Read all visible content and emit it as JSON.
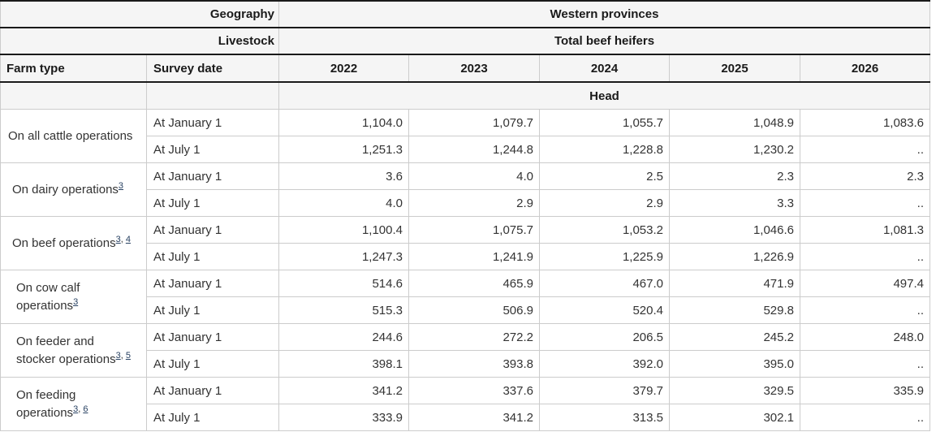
{
  "table": {
    "header": {
      "geography_label": "Geography",
      "geography_value": "Western provinces",
      "livestock_label": "Livestock",
      "livestock_value": "Total beef heifers",
      "farm_type": "Farm type",
      "survey_date": "Survey date",
      "years": [
        "2022",
        "2023",
        "2024",
        "2025",
        "2026"
      ],
      "unit": "Head"
    },
    "rows": [
      {
        "farm_type": "On all cattle operations",
        "footnotes": [],
        "indent": 0,
        "sub_rows": [
          {
            "survey_date": "At January 1",
            "values": [
              "1,104.0",
              "1,079.7",
              "1,055.7",
              "1,048.9",
              "1,083.6"
            ]
          },
          {
            "survey_date": "At July 1",
            "values": [
              "1,251.3",
              "1,244.8",
              "1,228.8",
              "1,230.2",
              ".."
            ]
          }
        ]
      },
      {
        "farm_type": "On dairy operations",
        "footnotes": [
          "3"
        ],
        "indent": 1,
        "sub_rows": [
          {
            "survey_date": "At January 1",
            "values": [
              "3.6",
              "4.0",
              "2.5",
              "2.3",
              "2.3"
            ]
          },
          {
            "survey_date": "At July 1",
            "values": [
              "4.0",
              "2.9",
              "2.9",
              "3.3",
              ".."
            ]
          }
        ]
      },
      {
        "farm_type": "On beef operations",
        "footnotes": [
          "3",
          "4"
        ],
        "indent": 1,
        "sub_rows": [
          {
            "survey_date": "At January 1",
            "values": [
              "1,100.4",
              "1,075.7",
              "1,053.2",
              "1,046.6",
              "1,081.3"
            ]
          },
          {
            "survey_date": "At July 1",
            "values": [
              "1,247.3",
              "1,241.9",
              "1,225.9",
              "1,226.9",
              ".."
            ]
          }
        ]
      },
      {
        "farm_type": "On cow calf operations",
        "footnotes": [
          "3"
        ],
        "indent": 2,
        "sub_rows": [
          {
            "survey_date": "At January 1",
            "values": [
              "514.6",
              "465.9",
              "467.0",
              "471.9",
              "497.4"
            ]
          },
          {
            "survey_date": "At July 1",
            "values": [
              "515.3",
              "506.9",
              "520.4",
              "529.8",
              ".."
            ]
          }
        ]
      },
      {
        "farm_type": "On feeder and stocker operations",
        "footnotes": [
          "3",
          "5"
        ],
        "indent": 2,
        "sub_rows": [
          {
            "survey_date": "At January 1",
            "values": [
              "244.6",
              "272.2",
              "206.5",
              "245.2",
              "248.0"
            ]
          },
          {
            "survey_date": "At July 1",
            "values": [
              "398.1",
              "393.8",
              "392.0",
              "395.0",
              ".."
            ]
          }
        ]
      },
      {
        "farm_type": "On feeding operations",
        "footnotes": [
          "3",
          "6"
        ],
        "indent": 2,
        "sub_rows": [
          {
            "survey_date": "At January 1",
            "values": [
              "341.2",
              "337.6",
              "379.7",
              "329.5",
              "335.9"
            ]
          },
          {
            "survey_date": "At July 1",
            "values": [
              "333.9",
              "341.2",
              "313.5",
              "302.1",
              ".."
            ]
          }
        ]
      }
    ],
    "colors": {
      "header_background": "#f5f5f5",
      "dark_border": "#1a1a1a",
      "light_border": "#cccccc",
      "text": "#333333",
      "footnote_link": "#284162"
    }
  }
}
